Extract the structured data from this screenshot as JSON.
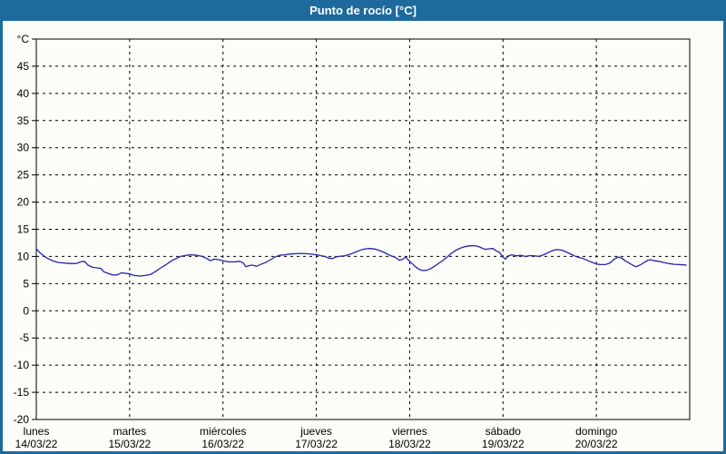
{
  "window": {
    "title": "Punto de rocío [°C]",
    "title_bar_color": "#1e6a9d",
    "border_color": "#1e6a9d",
    "plot_background": "#fcfdf8"
  },
  "chart_data": {
    "type": "line",
    "title": "Punto de rocío [°C]",
    "y_unit_label": "°C",
    "ylim": [
      -20,
      50
    ],
    "y_tick_step": 5,
    "y_tick_labels": [
      "°C",
      "45",
      "40",
      "35",
      "30",
      "25",
      "20",
      "15",
      "10",
      "5",
      "0",
      "-5",
      "-10",
      "-15",
      "-20"
    ],
    "grid": "dashed",
    "legend": "none",
    "x_total_hours": 168,
    "x_days": [
      {
        "name": "lunes",
        "date": "14/03/22"
      },
      {
        "name": "martes",
        "date": "15/03/22"
      },
      {
        "name": "miércoles",
        "date": "16/03/22"
      },
      {
        "name": "jueves",
        "date": "17/03/22"
      },
      {
        "name": "viernes",
        "date": "18/03/22"
      },
      {
        "name": "sábado",
        "date": "19/03/22"
      },
      {
        "name": "domingo",
        "date": "20/03/22"
      }
    ],
    "series": [
      {
        "name": "Punto de rocío",
        "unit": "°C",
        "x_unit": "hours since lunes 00:00",
        "color": "#2323ab",
        "points": [
          [
            0,
            11.4
          ],
          [
            0.9,
            10.7
          ],
          [
            1.9,
            10.1
          ],
          [
            3,
            9.6
          ],
          [
            4.2,
            9.2
          ],
          [
            5.6,
            8.9
          ],
          [
            7,
            8.8
          ],
          [
            8.6,
            8.7
          ],
          [
            10.3,
            8.7
          ],
          [
            11.4,
            9.0
          ],
          [
            12.4,
            9.1
          ],
          [
            13.3,
            8.4
          ],
          [
            14.5,
            8.0
          ],
          [
            15.6,
            7.9
          ],
          [
            16.6,
            7.8
          ],
          [
            17.3,
            7.2
          ],
          [
            18.4,
            6.9
          ],
          [
            19.6,
            6.6
          ],
          [
            20.8,
            6.6
          ],
          [
            21.9,
            7.0
          ],
          [
            22.9,
            6.9
          ],
          [
            24,
            6.8
          ],
          [
            25.2,
            6.5
          ],
          [
            26.6,
            6.4
          ],
          [
            28,
            6.5
          ],
          [
            29.4,
            6.7
          ],
          [
            30.6,
            7.2
          ],
          [
            32,
            7.9
          ],
          [
            33.4,
            8.5
          ],
          [
            34.8,
            9.2
          ],
          [
            35.9,
            9.6
          ],
          [
            37.1,
            10.0
          ],
          [
            38.5,
            10.2
          ],
          [
            39.9,
            10.3
          ],
          [
            41.3,
            10.2
          ],
          [
            42.7,
            10.0
          ],
          [
            43.9,
            9.6
          ],
          [
            44.8,
            9.2
          ],
          [
            45.7,
            9.5
          ],
          [
            46.9,
            9.4
          ],
          [
            48.1,
            9.2
          ],
          [
            49.5,
            9.0
          ],
          [
            50.9,
            9.0
          ],
          [
            52.3,
            9.1
          ],
          [
            53.2,
            8.8
          ],
          [
            53.9,
            8.1
          ],
          [
            54.6,
            8.3
          ],
          [
            55.5,
            8.4
          ],
          [
            56.7,
            8.2
          ],
          [
            57.9,
            8.6
          ],
          [
            59,
            8.9
          ],
          [
            60.2,
            9.4
          ],
          [
            61.4,
            9.9
          ],
          [
            62.5,
            10.2
          ],
          [
            63.9,
            10.3
          ],
          [
            65.3,
            10.45
          ],
          [
            66.7,
            10.5
          ],
          [
            68.1,
            10.55
          ],
          [
            69.5,
            10.5
          ],
          [
            70.9,
            10.4
          ],
          [
            72.1,
            10.3
          ],
          [
            73,
            10.15
          ],
          [
            74.2,
            10.0
          ],
          [
            75.1,
            9.7
          ],
          [
            76.1,
            9.6
          ],
          [
            77,
            9.9
          ],
          [
            78.2,
            10.05
          ],
          [
            79.3,
            10.1
          ],
          [
            80.3,
            10.3
          ],
          [
            81.4,
            10.6
          ],
          [
            82.4,
            10.9
          ],
          [
            83.5,
            11.2
          ],
          [
            84.7,
            11.4
          ],
          [
            85.9,
            11.45
          ],
          [
            87,
            11.35
          ],
          [
            88,
            11.15
          ],
          [
            88.9,
            10.9
          ],
          [
            90.1,
            10.5
          ],
          [
            91.2,
            10.1
          ],
          [
            92.4,
            9.8
          ],
          [
            93.3,
            9.3
          ],
          [
            94.3,
            9.5
          ],
          [
            95,
            9.9
          ],
          [
            95.7,
            9.3
          ],
          [
            96.6,
            8.7
          ],
          [
            97.5,
            8.1
          ],
          [
            98.5,
            7.6
          ],
          [
            99.4,
            7.4
          ],
          [
            100.3,
            7.45
          ],
          [
            101.3,
            7.7
          ],
          [
            102.4,
            8.2
          ],
          [
            103.6,
            8.8
          ],
          [
            104.8,
            9.4
          ],
          [
            105.7,
            9.9
          ],
          [
            106.6,
            10.5
          ],
          [
            107.8,
            11.1
          ],
          [
            109,
            11.5
          ],
          [
            110.1,
            11.8
          ],
          [
            111.3,
            11.95
          ],
          [
            112.5,
            12.0
          ],
          [
            113.6,
            11.85
          ],
          [
            114.6,
            11.55
          ],
          [
            115.5,
            11.3
          ],
          [
            116.4,
            11.4
          ],
          [
            117.4,
            11.45
          ],
          [
            118.3,
            11.0
          ],
          [
            119.2,
            10.7
          ],
          [
            119.9,
            9.9
          ],
          [
            120.6,
            9.5
          ],
          [
            121.3,
            10.1
          ],
          [
            122.3,
            10.3
          ],
          [
            123.4,
            10.1
          ],
          [
            124.6,
            10.2
          ],
          [
            125.8,
            10.0
          ],
          [
            126.9,
            10.15
          ],
          [
            128.1,
            10.1
          ],
          [
            129.3,
            10.0
          ],
          [
            130.4,
            10.3
          ],
          [
            131.6,
            10.7
          ],
          [
            132.8,
            11.1
          ],
          [
            133.9,
            11.25
          ],
          [
            135.1,
            11.15
          ],
          [
            136,
            10.9
          ],
          [
            137.2,
            10.5
          ],
          [
            138.4,
            10.1
          ],
          [
            139.5,
            9.8
          ],
          [
            140.7,
            9.6
          ],
          [
            141.9,
            9.2
          ],
          [
            143,
            8.9
          ],
          [
            144,
            8.6
          ],
          [
            145.1,
            8.5
          ],
          [
            146.3,
            8.5
          ],
          [
            147.5,
            8.8
          ],
          [
            148.6,
            9.5
          ],
          [
            149.6,
            9.9
          ],
          [
            150.5,
            9.7
          ],
          [
            151.4,
            9.2
          ],
          [
            152.4,
            8.8
          ],
          [
            153.3,
            8.4
          ],
          [
            154.2,
            8.1
          ],
          [
            155.2,
            8.4
          ],
          [
            156.3,
            8.9
          ],
          [
            157.3,
            9.3
          ],
          [
            158,
            9.4
          ],
          [
            158.9,
            9.2
          ],
          [
            160.1,
            9.1
          ],
          [
            161.2,
            8.9
          ],
          [
            162.6,
            8.7
          ],
          [
            164,
            8.55
          ],
          [
            165.2,
            8.5
          ],
          [
            166.4,
            8.45
          ],
          [
            167.1,
            8.4
          ]
        ]
      }
    ]
  }
}
